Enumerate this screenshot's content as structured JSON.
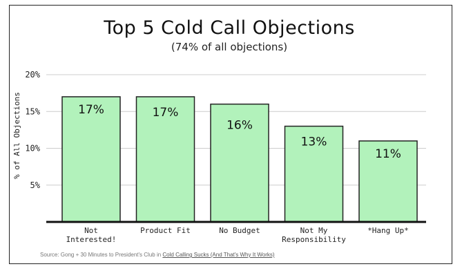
{
  "chart_data": {
    "type": "bar",
    "title": "Top 5 Cold Call Objections",
    "subtitle": "(74% of all objections)",
    "ylabel": "% of All Objections",
    "xlabel": "",
    "categories": [
      "Not Interested!",
      "Product Fit",
      "No Budget",
      "Not My Responsibility",
      "*Hang Up*"
    ],
    "category_lines": [
      [
        "Not",
        "Interested!"
      ],
      [
        "Product Fit"
      ],
      [
        "No Budget"
      ],
      [
        "Not My",
        "Responsibility"
      ],
      [
        "*Hang Up*"
      ]
    ],
    "values": [
      17,
      17,
      16,
      13,
      11
    ],
    "data_labels": [
      "17%",
      "17%",
      "16%",
      "13%",
      "11%"
    ],
    "ylim": [
      0,
      20
    ],
    "yticks": [
      5,
      10,
      15,
      20
    ],
    "ytick_labels": [
      "5%",
      "10%",
      "15%",
      "20%"
    ],
    "grid": true,
    "bar_color": "#b2f2bb",
    "bar_outline_color": "#222222"
  },
  "source": {
    "prefix": "Source: Gong + 30 Minutes to President's Club in ",
    "link_text": "Cold Calling Sucks (And That's Why It Works)"
  }
}
